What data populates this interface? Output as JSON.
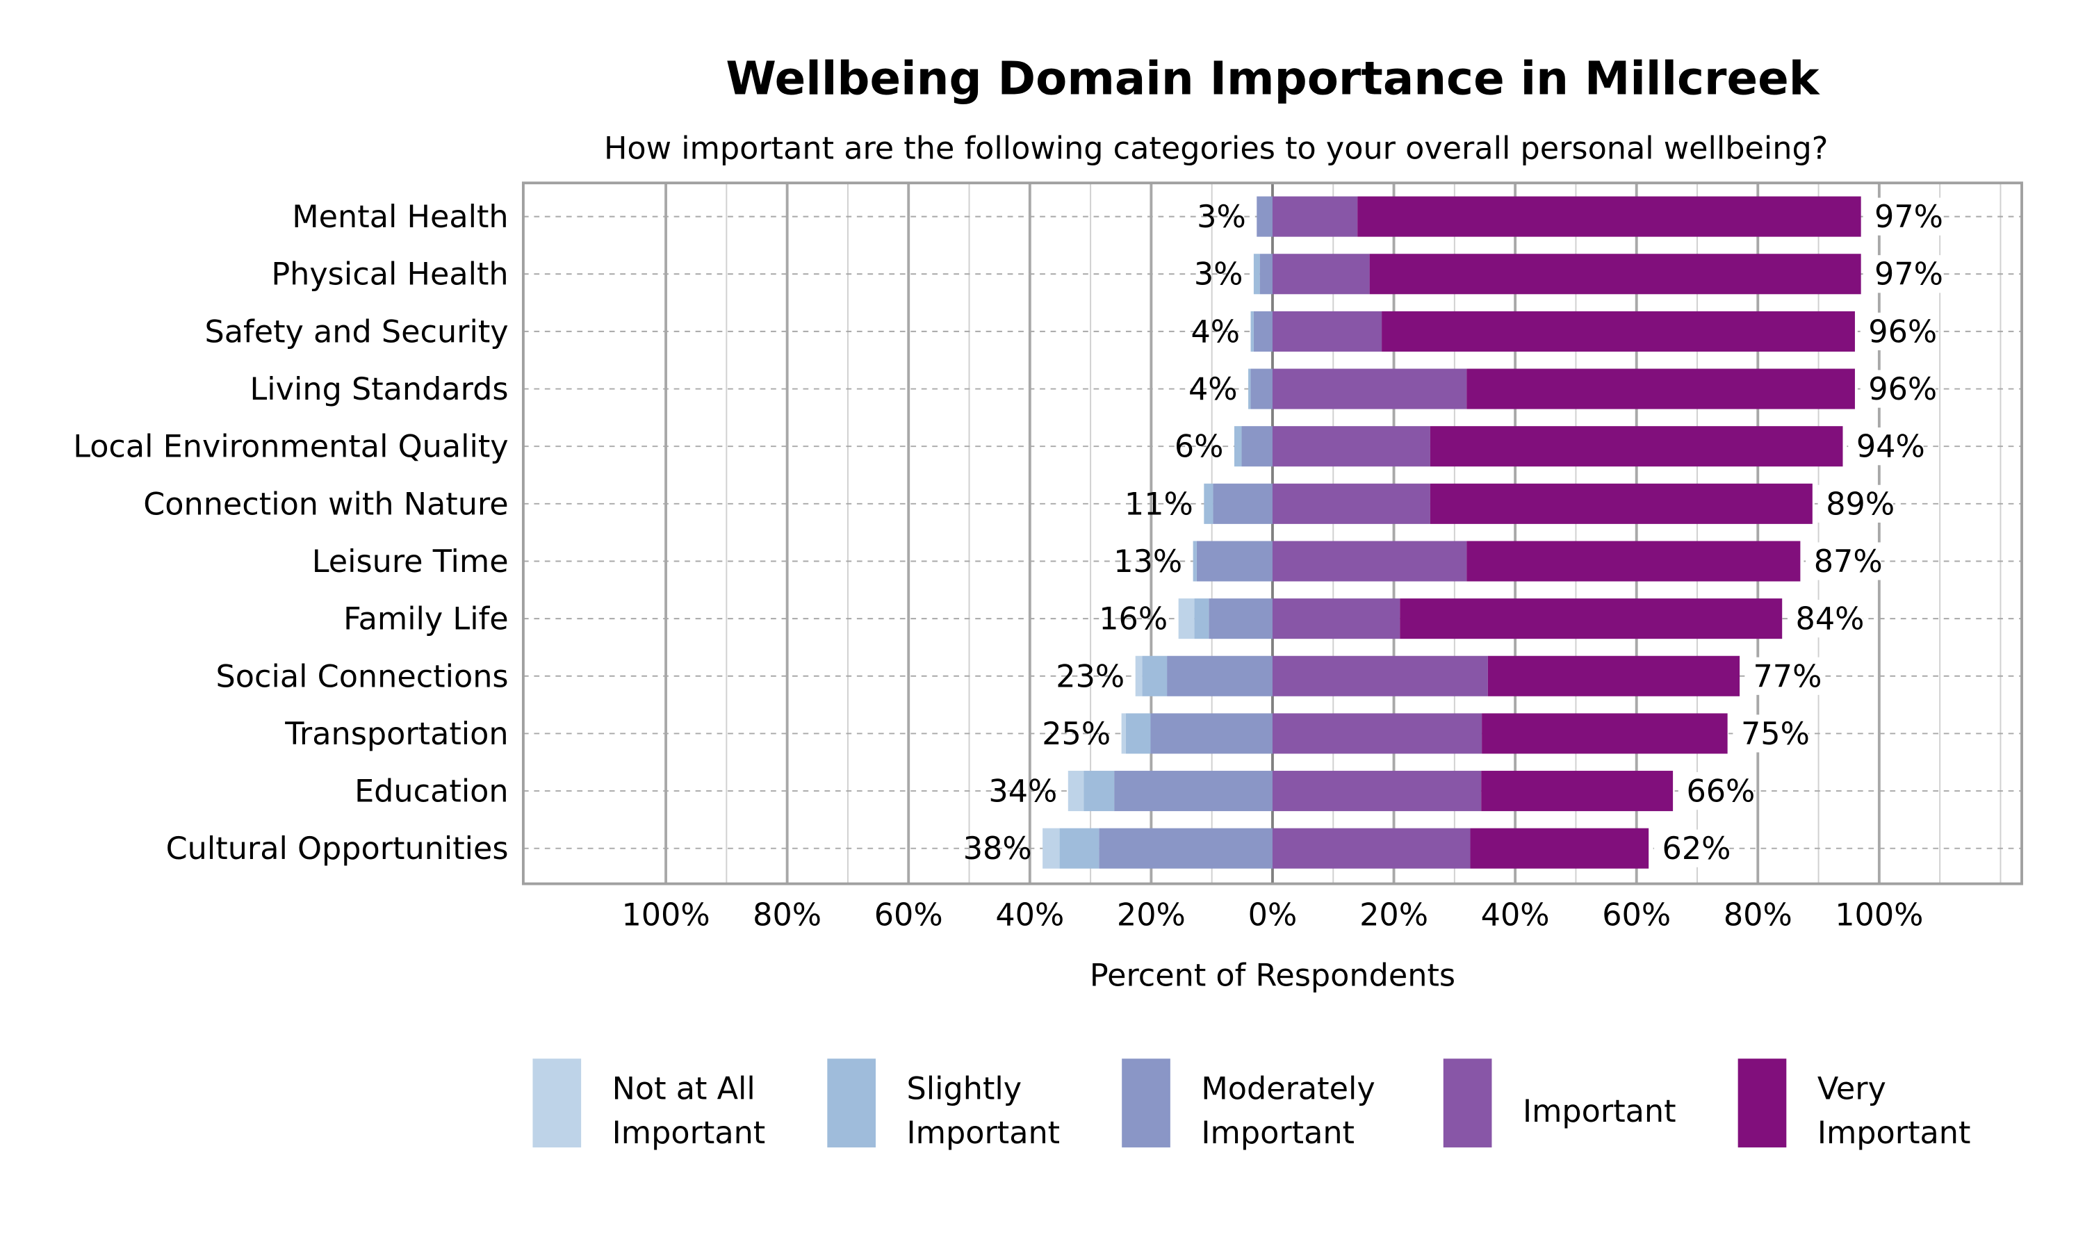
{
  "chart_data": {
    "type": "bar",
    "orientation": "horizontal-diverging-stacked",
    "title": "Wellbeing Domain Importance in Millcreek",
    "subtitle": "How important are the following categories to your overall personal wellbeing?",
    "xlabel": "Percent of Respondents",
    "xlim": [
      -100,
      100
    ],
    "x_ticks": [
      "100%",
      "80%",
      "60%",
      "40%",
      "20%",
      "0%",
      "20%",
      "40%",
      "60%",
      "80%",
      "100%"
    ],
    "grid": true,
    "legend_position": "bottom",
    "categories": [
      "Mental Health",
      "Physical Health",
      "Safety and Security",
      "Living Standards",
      "Local Environmental Quality",
      "Connection with Nature",
      "Leisure Time",
      "Family Life",
      "Social Connections",
      "Transportation",
      "Education",
      "Cultural Opportunities"
    ],
    "series": [
      {
        "name": "Not at All Important",
        "color": "#bed3e8",
        "side": "left",
        "values": [
          0,
          0,
          0,
          0,
          0,
          0,
          0,
          2.6,
          1.1,
          0.7,
          2.6,
          2.8
        ]
      },
      {
        "name": "Slightly Important",
        "color": "#9fbcdb",
        "side": "left",
        "values": [
          0,
          1,
          0.5,
          0.4,
          1.2,
          1.5,
          0.6,
          2.4,
          4.1,
          4.1,
          5,
          6.5
        ]
      },
      {
        "name": "Moderately Important",
        "color": "#8a96c6",
        "side": "left",
        "values": [
          2.6,
          2.1,
          3.1,
          3.6,
          5.1,
          9.8,
          12.5,
          10.5,
          17.4,
          20.1,
          26.1,
          28.6
        ]
      },
      {
        "name": "Important",
        "color": "#8856a7",
        "side": "right",
        "values": [
          14,
          16,
          18,
          32,
          26,
          26,
          32,
          21,
          35.5,
          34.5,
          34.4,
          32.6
        ]
      },
      {
        "name": "Very Important",
        "color": "#810f7c",
        "side": "right",
        "values": [
          83,
          81,
          78,
          64,
          68,
          63,
          55,
          63,
          41.5,
          40.5,
          31.6,
          29.4
        ]
      }
    ],
    "left_totals": [
      "3%",
      "3%",
      "4%",
      "4%",
      "6%",
      "11%",
      "13%",
      "16%",
      "23%",
      "25%",
      "34%",
      "38%"
    ],
    "right_totals": [
      "97%",
      "97%",
      "96%",
      "96%",
      "94%",
      "89%",
      "87%",
      "84%",
      "77%",
      "75%",
      "66%",
      "62%"
    ],
    "legend_labels": [
      [
        "Not at All",
        "Important"
      ],
      [
        "Slightly",
        "Important"
      ],
      [
        "Moderately",
        "Important"
      ],
      [
        "Important"
      ],
      [
        "Very",
        "Important"
      ]
    ]
  }
}
